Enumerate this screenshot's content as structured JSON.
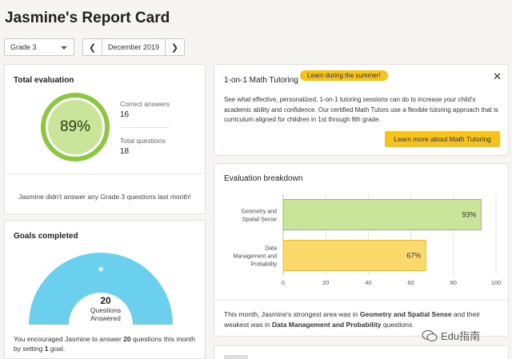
{
  "header": {
    "title": "Jasmine's Report Card"
  },
  "controls": {
    "grade": "Grade 3",
    "month": "December 2019",
    "prev_symbol": "❮",
    "next_symbol": "❯"
  },
  "total_evaluation": {
    "title": "Total evaluation",
    "percent_label": "89%",
    "percent_value": 89,
    "correct_label": "Correct answers",
    "correct_value": "16",
    "questions_label": "Total questions",
    "questions_value": "18",
    "note": "Jasmine didn't answer any Grade 3 questions last month!",
    "colors": {
      "ring": "#8dc63f",
      "fill": "#c8e59a"
    }
  },
  "goals": {
    "title": "Goals completed",
    "star": "★",
    "count": "20",
    "label_line1": "Questions",
    "label_line2": "Answered",
    "desc_pre": "You encouraged Jasmine to answer ",
    "desc_num": "20",
    "desc_mid": " questions this month by setting ",
    "desc_goal": "1",
    "desc_post": " goal.",
    "color": "#6ad0ed"
  },
  "tutoring": {
    "title": "1-on-1 Math Tutoring",
    "badge": "Learn during the summer!",
    "close_symbol": "✕",
    "text": "See what effective, personalized, 1-on-1 tutoring sessions can do to increase your child's academic ability and confidence. Our certified Math Tutors use a flexible tutoring approach that is curriculum aligned for children in 1st through 8th grade.",
    "button": "Learn more about Math Tutoring",
    "accent": "#f6c21c"
  },
  "breakdown": {
    "title": "Evaluation breakdown",
    "summary_pre": "This month, Jasmine's strongest area was in ",
    "summary_strong": "Geometry and Spatial Sense",
    "summary_mid": " and their weakest was in ",
    "summary_weak": "Data Management and Probability",
    "summary_post": " questions"
  },
  "chart_data": {
    "type": "bar",
    "orientation": "horizontal",
    "categories": [
      [
        "Geometry and",
        "Spatial Sense"
      ],
      [
        "Data",
        "Management and",
        "Probability"
      ]
    ],
    "values": [
      93,
      67
    ],
    "value_labels": [
      "93%",
      "67%"
    ],
    "colors": [
      "#c8e59a",
      "#fbd96a"
    ],
    "border_colors": [
      "#8dc63f",
      "#e9b938"
    ],
    "xlim": [
      0,
      100
    ],
    "xticks": [
      0,
      20,
      40,
      60,
      80,
      100
    ],
    "grid": true
  },
  "watermark": {
    "text": "Edu指南"
  }
}
